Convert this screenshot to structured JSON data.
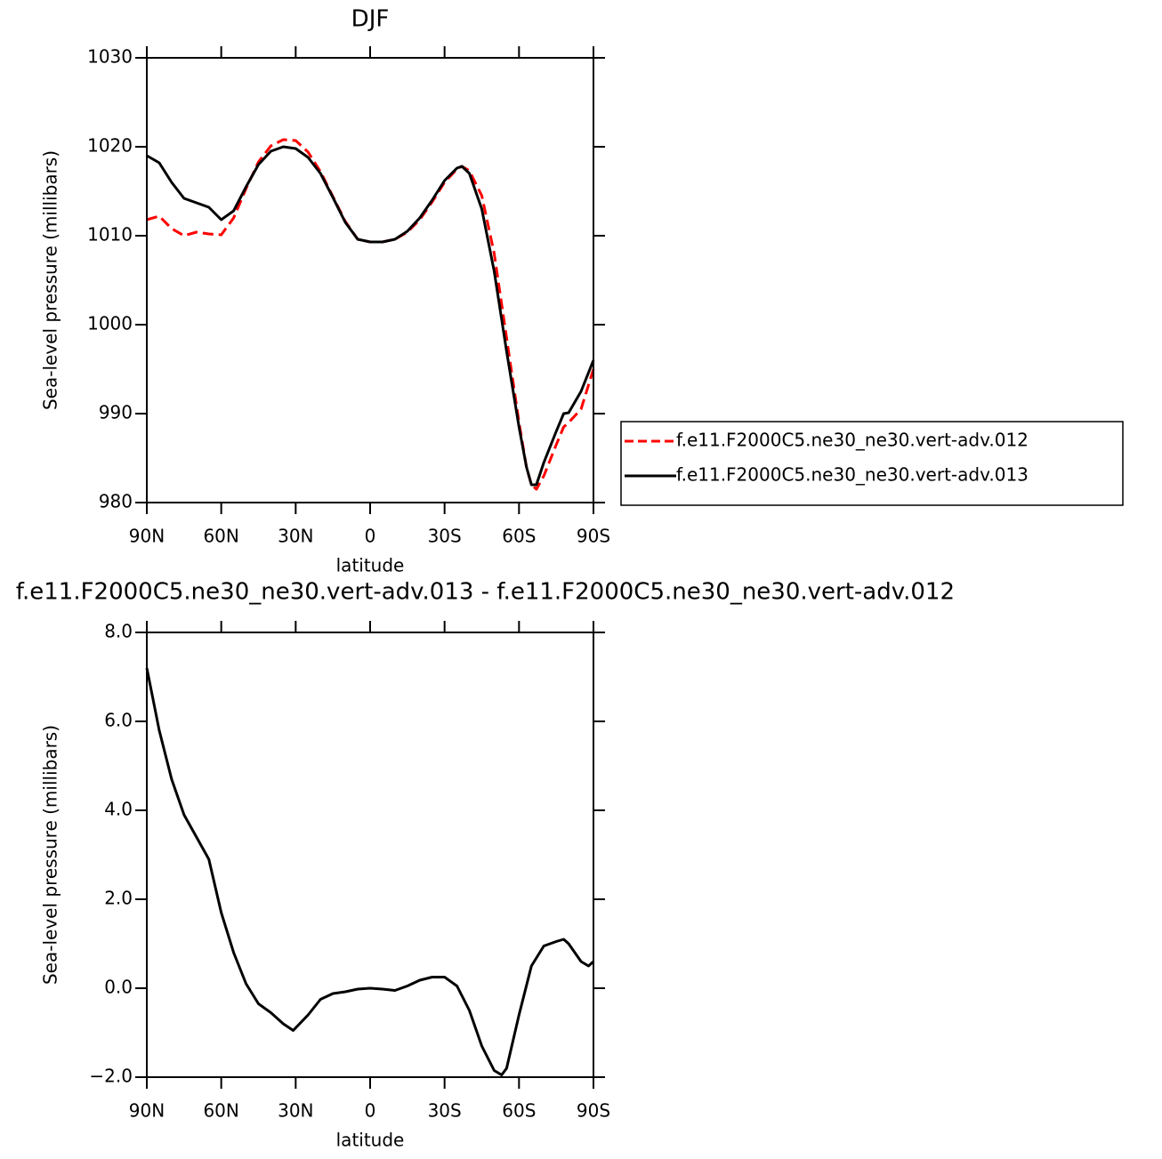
{
  "chart_data": [
    {
      "type": "line",
      "title": "DJF",
      "x_label": "latitude",
      "y_label": "Sea-level pressure (millibars)",
      "x": [
        90,
        85,
        80,
        75,
        70,
        65,
        60,
        55,
        50,
        45,
        40,
        35,
        30,
        25,
        20,
        15,
        10,
        5,
        0,
        -5,
        -10,
        -15,
        -20,
        -25,
        -30,
        -35,
        -37,
        -40,
        -45,
        -50,
        -55,
        -60,
        -63,
        -65,
        -67,
        -70,
        -75,
        -78,
        -80,
        -85,
        -90
      ],
      "series": [
        {
          "name": "f.e11.F2000C5.ne30_ne30.vert-adv.012",
          "color": "#ff0000",
          "style": "dashed",
          "values": [
            1011.8,
            1012.2,
            1010.8,
            1010,
            1010.4,
            1010.2,
            1010.1,
            1012,
            1015.3,
            1018.3,
            1020.1,
            1020.8,
            1020.7,
            1019.4,
            1017.2,
            1014.4,
            1011.6,
            1009.6,
            1009.3,
            1009.3,
            1009.6,
            1010.4,
            1011.8,
            1013.8,
            1016,
            1017.5,
            1017.8,
            1017.3,
            1014.5,
            1008,
            998.5,
            989,
            984,
            982,
            981.5,
            983,
            986.5,
            988.5,
            989,
            990.5,
            995
          ]
        },
        {
          "name": "f.e11.F2000C5.ne30_ne30.vert-adv.013",
          "color": "#000000",
          "style": "solid",
          "values": [
            1019,
            1018.2,
            1016,
            1014.2,
            1013.7,
            1013.2,
            1011.8,
            1012.8,
            1015.5,
            1018,
            1019.5,
            1020,
            1019.8,
            1018.8,
            1017,
            1014.3,
            1011.5,
            1009.6,
            1009.3,
            1009.3,
            1009.6,
            1010.5,
            1012,
            1014,
            1016.2,
            1017.6,
            1017.8,
            1017,
            1013,
            1006,
            997,
            988.5,
            984,
            982,
            982,
            984.5,
            988,
            990,
            990.1,
            992.5,
            996
          ]
        }
      ],
      "xlim": [
        90,
        -90
      ],
      "xticks": [
        {
          "value": 90,
          "label": "90N"
        },
        {
          "value": 60,
          "label": "60N"
        },
        {
          "value": 30,
          "label": "30N"
        },
        0,
        {
          "value": -30,
          "label": "30S"
        },
        {
          "value": -60,
          "label": "60S"
        },
        {
          "value": -90,
          "label": "90S"
        }
      ],
      "ylim": [
        980,
        1030
      ],
      "yticks": [
        980,
        990,
        1000,
        1010,
        1020,
        1030
      ],
      "legend": "right"
    },
    {
      "type": "line",
      "title": "f.e11.F2000C5.ne30_ne30.vert-adv.013 - f.e11.F2000C5.ne30_ne30.vert-adv.012",
      "x_label": "latitude",
      "y_label": "Sea-level pressure (millibars)",
      "x": [
        90,
        85,
        80,
        75,
        70,
        65,
        60,
        55,
        50,
        45,
        40,
        35,
        31,
        25,
        20,
        15,
        10,
        5,
        0,
        -5,
        -10,
        -15,
        -20,
        -25,
        -30,
        -35,
        -40,
        -45,
        -50,
        -53,
        -55,
        -60,
        -65,
        -70,
        -75,
        -78,
        -80,
        -85,
        -88,
        -90
      ],
      "values": [
        7.2,
        5.8,
        4.7,
        3.9,
        3.4,
        2.9,
        1.7,
        0.8,
        0.1,
        -0.35,
        -0.55,
        -0.8,
        -0.95,
        -0.6,
        -0.25,
        -0.12,
        -0.08,
        -0.02,
        0,
        -0.02,
        -0.05,
        0.05,
        0.18,
        0.25,
        0.25,
        0.05,
        -0.5,
        -1.3,
        -1.85,
        -1.95,
        -1.8,
        -0.6,
        0.5,
        0.95,
        1.05,
        1.1,
        1.0,
        0.6,
        0.5,
        0.6
      ],
      "color": "#000000",
      "xlim": [
        90,
        -90
      ],
      "xticks": [
        {
          "value": 90,
          "label": "90N"
        },
        {
          "value": 60,
          "label": "60N"
        },
        {
          "value": 30,
          "label": "30N"
        },
        0,
        {
          "value": -30,
          "label": "30S"
        },
        {
          "value": -60,
          "label": "60S"
        },
        {
          "value": -90,
          "label": "90S"
        }
      ],
      "ylim": [
        -2,
        8
      ],
      "yticks": [
        {
          "value": -2,
          "label": "−2.0"
        },
        {
          "value": 0,
          "label": "0.0"
        },
        {
          "value": 2,
          "label": "2.0"
        },
        {
          "value": 4,
          "label": "4.0"
        },
        {
          "value": 6,
          "label": "6.0"
        },
        {
          "value": 8,
          "label": "8.0"
        }
      ]
    }
  ]
}
